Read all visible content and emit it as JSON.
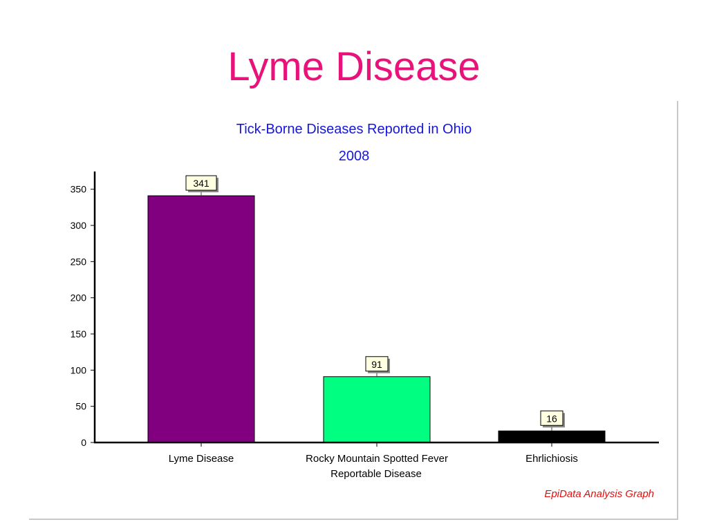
{
  "slide": {
    "title": "Lyme Disease"
  },
  "chart_data": {
    "type": "bar",
    "title": "Tick-Borne Diseases Reported in Ohio",
    "subtitle": "2008",
    "xlabel": "Reportable Disease",
    "ylabel": "",
    "categories": [
      "Lyme Disease",
      "Rocky Mountain Spotted Fever",
      "Ehrlichiosis"
    ],
    "values": [
      341,
      91,
      16
    ],
    "data_labels": [
      "341",
      "91",
      "16"
    ],
    "bar_colors": [
      "#800080",
      "#00ff80",
      "#000000"
    ],
    "ylim": [
      0,
      375
    ],
    "yticks": [
      0,
      50,
      100,
      150,
      200,
      250,
      300,
      350
    ],
    "grid": false,
    "legend": "none",
    "footnote": "EpiData Analysis Graph",
    "colors": {
      "title": "#1515e0",
      "footnote": "#e01010",
      "axis": "#000000",
      "label_box": "#fefee0"
    }
  }
}
